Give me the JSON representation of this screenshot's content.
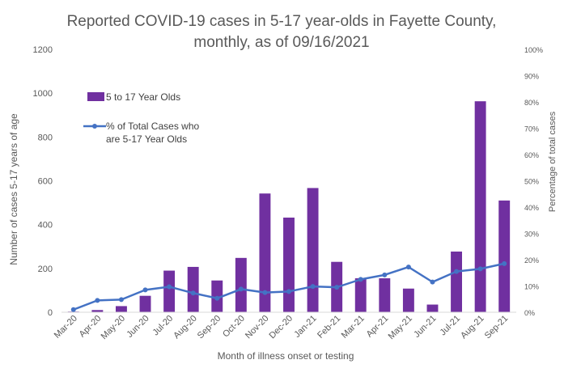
{
  "chart_data": {
    "type": "bar",
    "title_line1": "Reported COVID-19 cases in 5-17 year-olds in Fayette County,",
    "title_line2": "monthly, as of 09/16/2021",
    "xlabel": "Month of illness onset or testing",
    "ylabel_left": "Number of cases 5-17 years of age",
    "ylabel_right": "Percentage of total cases",
    "categories": [
      "Mar-20",
      "Apr-20",
      "May-20",
      "Jun-20",
      "Jul-20",
      "Aug-20",
      "Sep-20",
      "Oct-20",
      "Nov-20",
      "Dec-20",
      "Jan-21",
      "Feb-21",
      "Mar-21",
      "Apr-21",
      "May-21",
      "Jun-21",
      "Jul-21",
      "Aug-21",
      "Sep-21"
    ],
    "left_ticks": [
      "0",
      "200",
      "400",
      "600",
      "800",
      "1000",
      "1200"
    ],
    "right_ticks": [
      "0%",
      "10%",
      "20%",
      "30%",
      "40%",
      "50%",
      "60%",
      "70%",
      "80%",
      "90%",
      "100%"
    ],
    "ylim_left": [
      0,
      1200
    ],
    "ylim_right": [
      0,
      100
    ],
    "series": [
      {
        "name": "5 to 17 Year Olds",
        "kind": "bar",
        "axis": "left",
        "color": "#7030a0",
        "values": [
          3,
          10,
          28,
          75,
          190,
          207,
          145,
          248,
          542,
          432,
          567,
          230,
          155,
          155,
          108,
          35,
          277,
          963,
          510
        ]
      },
      {
        "name_line1": "% of Total Cases who",
        "name_line2": "are 5-17 Year Olds",
        "kind": "line",
        "axis": "right",
        "color": "#4472c4",
        "values": [
          1,
          4.5,
          4.8,
          8.5,
          9.7,
          7.3,
          5.3,
          8.8,
          7.5,
          7.9,
          9.8,
          9.5,
          12.5,
          14.2,
          17.2,
          11.5,
          15.5,
          16.5,
          18.5
        ]
      }
    ],
    "legend_position": "upper-left inside plot",
    "grid": false
  }
}
